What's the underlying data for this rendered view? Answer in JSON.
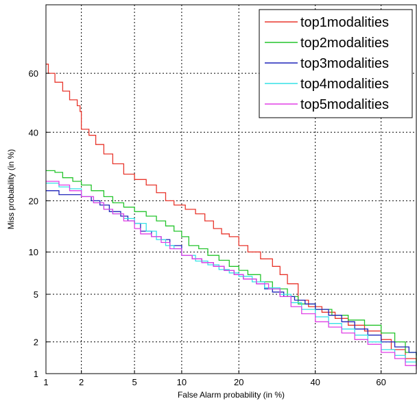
{
  "chart_data": {
    "type": "line",
    "title": "",
    "xlabel": "False Alarm probability (in %)",
    "ylabel": "Miss probability (in %)",
    "x_scale": "probit",
    "y_scale": "probit",
    "xlim": [
      1,
      70
    ],
    "ylim": [
      1,
      80
    ],
    "x_ticks": [
      1,
      2,
      5,
      10,
      20,
      40,
      60
    ],
    "y_ticks": [
      1,
      2,
      5,
      10,
      20,
      40,
      60
    ],
    "grid": true,
    "legend_position": "top-right",
    "series": [
      {
        "name": "top1modalities",
        "color": "#e8352b",
        "points": [
          [
            1,
            63
          ],
          [
            1.05,
            60
          ],
          [
            1.2,
            57
          ],
          [
            1.4,
            54
          ],
          [
            1.6,
            51
          ],
          [
            1.85,
            49
          ],
          [
            1.95,
            47
          ],
          [
            2.0,
            41
          ],
          [
            2.3,
            39
          ],
          [
            2.6,
            36
          ],
          [
            3.0,
            33
          ],
          [
            3.5,
            30
          ],
          [
            4.2,
            27
          ],
          [
            5.0,
            25.5
          ],
          [
            6.0,
            24
          ],
          [
            7.0,
            22
          ],
          [
            8.0,
            20
          ],
          [
            9.0,
            19
          ],
          [
            10.5,
            18
          ],
          [
            12,
            17
          ],
          [
            13.5,
            15.5
          ],
          [
            15,
            14
          ],
          [
            16.5,
            13
          ],
          [
            18,
            12.5
          ],
          [
            20,
            11
          ],
          [
            22,
            10
          ],
          [
            25,
            9
          ],
          [
            28,
            8
          ],
          [
            30,
            7
          ],
          [
            32,
            6
          ],
          [
            35,
            4.5
          ],
          [
            38,
            4
          ],
          [
            42,
            3.6
          ],
          [
            46,
            3.2
          ],
          [
            50,
            2.8
          ],
          [
            55,
            2.5
          ],
          [
            60,
            2.1
          ],
          [
            63,
            1.7
          ],
          [
            67,
            1.4
          ],
          [
            70,
            1.2
          ]
        ]
      },
      {
        "name": "top2modalities",
        "color": "#22c42a",
        "points": [
          [
            1,
            28
          ],
          [
            1.2,
            27.5
          ],
          [
            1.4,
            26
          ],
          [
            1.7,
            25
          ],
          [
            2.0,
            24
          ],
          [
            2.4,
            22.5
          ],
          [
            3.0,
            21
          ],
          [
            3.5,
            19.5
          ],
          [
            4.2,
            18.5
          ],
          [
            5.0,
            17.5
          ],
          [
            6.0,
            16.5
          ],
          [
            7.0,
            15.5
          ],
          [
            8.0,
            14.5
          ],
          [
            9.0,
            13.5
          ],
          [
            10,
            12.5
          ],
          [
            11,
            11
          ],
          [
            12.5,
            10.5
          ],
          [
            14,
            9.5
          ],
          [
            16,
            8.8
          ],
          [
            18,
            8
          ],
          [
            20,
            7.5
          ],
          [
            22,
            7
          ],
          [
            25,
            6.2
          ],
          [
            28,
            5.5
          ],
          [
            32,
            4.8
          ],
          [
            35,
            4.2
          ],
          [
            40,
            3.8
          ],
          [
            45,
            3.4
          ],
          [
            50,
            3.1
          ],
          [
            55,
            2.8
          ],
          [
            60,
            2.4
          ],
          [
            64,
            2.0
          ],
          [
            67,
            1.6
          ],
          [
            70,
            1.3
          ]
        ]
      },
      {
        "name": "top3modalities",
        "color": "#1c22b8",
        "points": [
          [
            1,
            22.5
          ],
          [
            1.3,
            21.5
          ],
          [
            1.6,
            21.5
          ],
          [
            2.0,
            21
          ],
          [
            2.4,
            20
          ],
          [
            2.8,
            19
          ],
          [
            3.3,
            17.5
          ],
          [
            4.0,
            16.5
          ],
          [
            4.5,
            15.5
          ],
          [
            5.0,
            15
          ],
          [
            5.5,
            13.5
          ],
          [
            6.5,
            12.5
          ],
          [
            7.5,
            12
          ],
          [
            8.5,
            11
          ],
          [
            10,
            9.5
          ],
          [
            11.5,
            9
          ],
          [
            13,
            8.5
          ],
          [
            15,
            8
          ],
          [
            17,
            7.5
          ],
          [
            19,
            7
          ],
          [
            21,
            6.5
          ],
          [
            24,
            6
          ],
          [
            26,
            5.5
          ],
          [
            28,
            5.2
          ],
          [
            31,
            4.8
          ],
          [
            34,
            4.5
          ],
          [
            37,
            4.2
          ],
          [
            40,
            3.8
          ],
          [
            44,
            3.4
          ],
          [
            48,
            3.0
          ],
          [
            52,
            2.6
          ],
          [
            56,
            2.3
          ],
          [
            60,
            2.0
          ],
          [
            64,
            1.8
          ],
          [
            68,
            1.6
          ],
          [
            70,
            1.5
          ]
        ]
      },
      {
        "name": "top4modalities",
        "color": "#33e0e6",
        "points": [
          [
            1,
            24.5
          ],
          [
            1.3,
            23.5
          ],
          [
            1.6,
            23
          ],
          [
            2.0,
            21
          ],
          [
            2.5,
            19.5
          ],
          [
            3.0,
            18
          ],
          [
            3.5,
            17
          ],
          [
            4.2,
            16
          ],
          [
            5.0,
            15
          ],
          [
            6.0,
            13.5
          ],
          [
            7.0,
            12
          ],
          [
            8.0,
            11
          ],
          [
            9.0,
            10.5
          ],
          [
            10,
            9.5
          ],
          [
            12,
            8.7
          ],
          [
            14,
            8.2
          ],
          [
            16,
            7.6
          ],
          [
            18,
            7.2
          ],
          [
            20,
            6.8
          ],
          [
            23,
            6.2
          ],
          [
            26,
            5.6
          ],
          [
            30,
            5.0
          ],
          [
            33,
            4.3
          ],
          [
            36,
            3.8
          ],
          [
            40,
            3.3
          ],
          [
            44,
            2.9
          ],
          [
            48,
            2.6
          ],
          [
            52,
            2.3
          ],
          [
            56,
            2.0
          ],
          [
            60,
            1.7
          ],
          [
            64,
            1.5
          ],
          [
            67,
            1.3
          ],
          [
            70,
            1.2
          ]
        ]
      },
      {
        "name": "top5modalities",
        "color": "#e03ee6",
        "points": [
          [
            1,
            25
          ],
          [
            1.3,
            24
          ],
          [
            1.6,
            22.5
          ],
          [
            2.0,
            21
          ],
          [
            2.5,
            19.5
          ],
          [
            3.0,
            18
          ],
          [
            3.5,
            17
          ],
          [
            4.2,
            15.5
          ],
          [
            5.0,
            14
          ],
          [
            5.5,
            13
          ],
          [
            6.5,
            12.5
          ],
          [
            7.5,
            11.5
          ],
          [
            8.5,
            10.5
          ],
          [
            10,
            9.5
          ],
          [
            11.5,
            9
          ],
          [
            13,
            8.5
          ],
          [
            15,
            8
          ],
          [
            17,
            7.5
          ],
          [
            19,
            7
          ],
          [
            21,
            6.5
          ],
          [
            24,
            6
          ],
          [
            27,
            5.5
          ],
          [
            30,
            4.8
          ],
          [
            33,
            4.0
          ],
          [
            36,
            3.5
          ],
          [
            40,
            3.0
          ],
          [
            44,
            2.7
          ],
          [
            48,
            2.4
          ],
          [
            52,
            2.1
          ],
          [
            56,
            1.9
          ],
          [
            60,
            1.6
          ],
          [
            64,
            1.4
          ],
          [
            67,
            1.2
          ],
          [
            70,
            1.1
          ]
        ]
      }
    ]
  }
}
